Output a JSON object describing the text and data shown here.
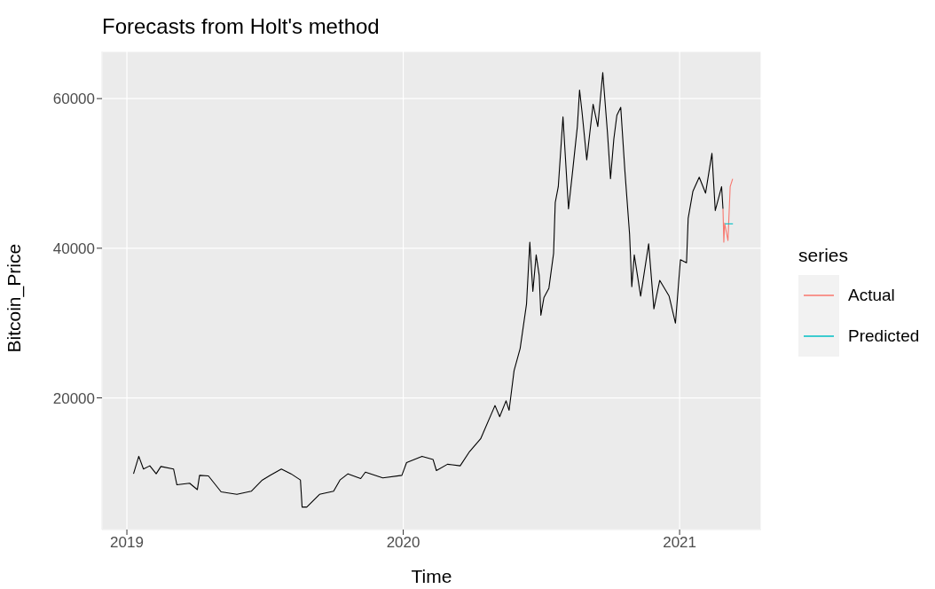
{
  "chart_data": {
    "type": "line",
    "title": "Forecasts from Holt's method",
    "xlabel": "Time",
    "ylabel": "Bitcoin_Price",
    "legend_title": "series",
    "xlim": [
      2018.91,
      2021.295
    ],
    "xticks": [
      2019,
      2020,
      2021
    ],
    "ylim": [
      2400,
      66300
    ],
    "yticks": [
      20000,
      40000,
      60000
    ],
    "grid": true,
    "legend": "right",
    "line_style": "solid",
    "marker": "none",
    "series": [
      {
        "color": "#000000",
        "x": [
          2019.024,
          2019.043,
          2019.06,
          2019.083,
          2019.106,
          2019.123,
          2019.169,
          2019.181,
          2019.227,
          2019.255,
          2019.263,
          2019.295,
          2019.341,
          2019.398,
          2019.45,
          2019.49,
          2019.519,
          2019.559,
          2019.594,
          2019.628,
          2019.634,
          2019.651,
          2019.697,
          2019.748,
          2019.771,
          2019.8,
          2019.846,
          2019.863,
          2019.926,
          2019.995,
          2020.012,
          2020.068,
          2020.108,
          2020.12,
          2020.16,
          2020.206,
          2020.24,
          2020.28,
          2020.332,
          2020.349,
          2020.372,
          2020.383,
          2020.401,
          2020.423,
          2020.446,
          2020.458,
          2020.469,
          2020.481,
          2020.492,
          2020.498,
          2020.509,
          2020.527,
          2020.544,
          2020.55,
          2020.561,
          2020.578,
          2020.598,
          2020.613,
          2020.63,
          2020.638,
          2020.647,
          2020.664,
          2020.687,
          2020.704,
          2020.722,
          2020.739,
          2020.75,
          2020.762,
          2020.773,
          2020.787,
          2020.802,
          2020.819,
          2020.827,
          2020.836,
          2020.859,
          2020.888,
          2020.907,
          2020.928,
          2020.962,
          2020.985,
          2021.003,
          2021.025,
          2021.031,
          2021.048,
          2021.071,
          2021.094,
          2021.117,
          2021.129,
          2021.152,
          2021.157
        ],
        "values": [
          9850,
          12190,
          10490,
          10920,
          9850,
          10830,
          10490,
          8380,
          8590,
          7740,
          9650,
          9570,
          7440,
          7110,
          7520,
          9020,
          9650,
          10490,
          9850,
          9020,
          5410,
          5410,
          7110,
          7520,
          9020,
          9850,
          9220,
          10080,
          9300,
          9650,
          11350,
          12190,
          11760,
          10280,
          11130,
          10920,
          12830,
          14530,
          18980,
          17490,
          19610,
          18340,
          23630,
          26600,
          32530,
          40810,
          34230,
          39110,
          36360,
          31050,
          33390,
          34660,
          39320,
          46100,
          48230,
          57560,
          45260,
          50340,
          56270,
          61150,
          58180,
          51820,
          59240,
          56270,
          63490,
          55430,
          49280,
          54590,
          57760,
          58830,
          50340,
          41860,
          34870,
          39110,
          33600,
          40590,
          31900,
          35710,
          33600,
          29990,
          38470,
          38050,
          43990,
          47590,
          49500,
          47370,
          52680,
          45040,
          48230,
          45260
        ]
      },
      {
        "name": "Actual",
        "color": "#f8766d",
        "x": [
          2021.157,
          2021.16,
          2021.163,
          2021.175,
          2021.183,
          2021.192
        ],
        "values": [
          45260,
          40810,
          43350,
          41020,
          48230,
          49280
        ]
      },
      {
        "name": "Predicted",
        "color": "#00bfc4",
        "x": [
          2021.164,
          2021.193
        ],
        "values": [
          43260,
          43260
        ]
      }
    ]
  }
}
